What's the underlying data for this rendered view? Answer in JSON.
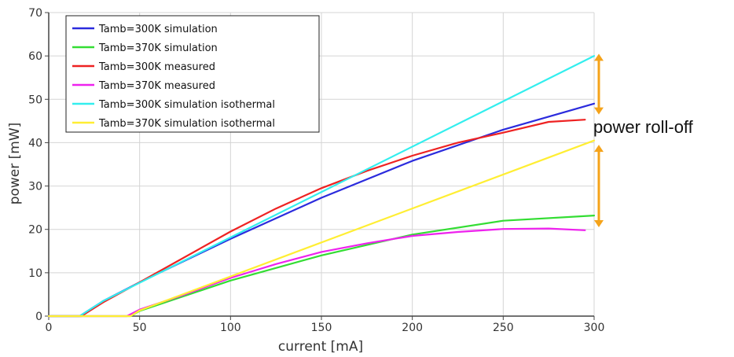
{
  "chart_data": {
    "type": "line",
    "xlabel": "current [mA]",
    "ylabel": "power [mW]",
    "xlim": [
      0,
      300
    ],
    "ylim": [
      0,
      70
    ],
    "xticks": [
      0,
      50,
      100,
      150,
      200,
      250,
      300
    ],
    "yticks": [
      0,
      10,
      20,
      30,
      40,
      50,
      60,
      70
    ],
    "grid": true,
    "legend_position": "top-left",
    "series": [
      {
        "name": "Tamb=300K simulation",
        "color": "#2b2bdd",
        "x": [
          0,
          17,
          30,
          50,
          100,
          150,
          200,
          250,
          300
        ],
        "y": [
          0,
          0,
          3.5,
          7.8,
          17.8,
          27.3,
          35.8,
          43.0,
          49.0
        ]
      },
      {
        "name": "Tamb=370K simulation",
        "color": "#33dd33",
        "x": [
          0,
          45,
          50,
          100,
          150,
          200,
          250,
          300
        ],
        "y": [
          0,
          0,
          1.2,
          8.2,
          14.0,
          18.8,
          22.0,
          23.2
        ]
      },
      {
        "name": "Tamb=300K measured",
        "color": "#ee2222",
        "x": [
          0,
          18,
          30,
          50,
          100,
          125,
          150,
          175,
          200,
          225,
          250,
          275,
          295
        ],
        "y": [
          0,
          0,
          3.2,
          7.8,
          19.5,
          24.8,
          29.5,
          33.5,
          37.0,
          40.0,
          42.3,
          44.8,
          45.3
        ]
      },
      {
        "name": "Tamb=370K measured",
        "color": "#ee22ee",
        "x": [
          0,
          43,
          50,
          75,
          100,
          125,
          150,
          175,
          200,
          225,
          250,
          275,
          295
        ],
        "y": [
          0,
          0,
          1.5,
          5.0,
          8.8,
          12.0,
          14.8,
          16.8,
          18.5,
          19.4,
          20.1,
          20.2,
          19.8
        ]
      },
      {
        "name": "Tamb=300K simulation isothermal",
        "color": "#33eeee",
        "x": [
          0,
          17,
          30,
          300
        ],
        "y": [
          0,
          0,
          3.5,
          60.0
        ]
      },
      {
        "name": "Tamb=370K simulation isothermal",
        "color": "#ffee33",
        "x": [
          0,
          45,
          50,
          300
        ],
        "y": [
          0,
          0,
          1.3,
          40.5
        ]
      }
    ],
    "annotations": [
      {
        "text": "power roll-off",
        "color": "#f5a31a"
      }
    ]
  }
}
